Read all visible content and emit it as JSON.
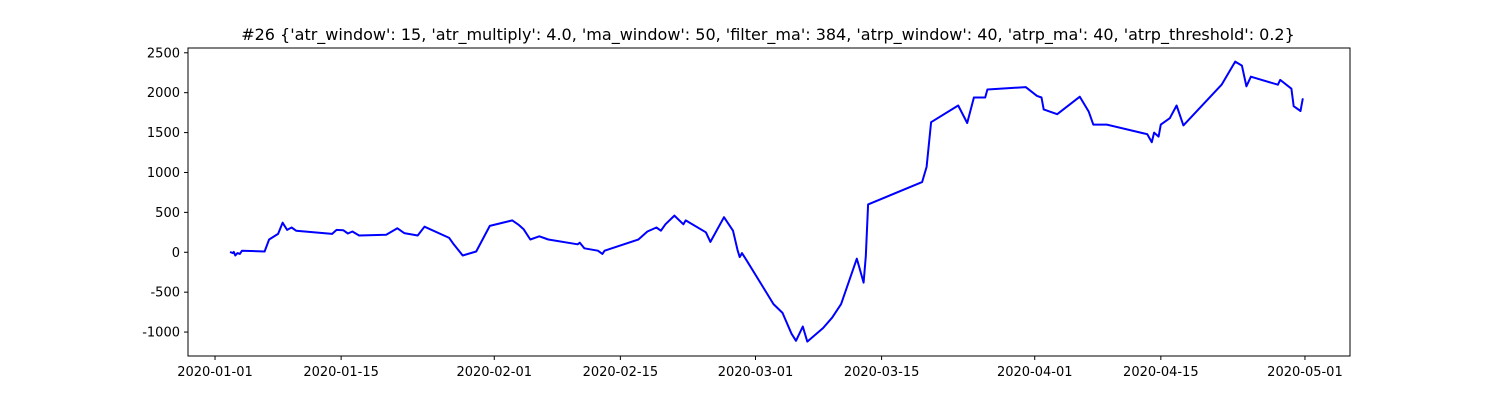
{
  "chart_data": {
    "type": "line",
    "title": "#26 {'atr_window': 15, 'atr_multiply': 4.0, 'ma_window': 50, 'filter_ma': 384, 'atrp_window': 40, 'atrp_ma': 40, 'atrp_threshold': 0.2}",
    "xlabel": "",
    "ylabel": "",
    "x_type": "date",
    "xlim": [
      "2019-12-29",
      "2020-05-06"
    ],
    "ylim": [
      -1300,
      2560
    ],
    "x_ticks": [
      "2020-01-01",
      "2020-01-15",
      "2020-02-01",
      "2020-02-15",
      "2020-03-01",
      "2020-03-15",
      "2020-04-01",
      "2020-04-15",
      "2020-05-01"
    ],
    "y_ticks": [
      -1000,
      -500,
      0,
      500,
      1000,
      1500,
      2000,
      2500
    ],
    "grid": false,
    "line_color": "#0000ff",
    "series": [
      {
        "points": [
          [
            "2020-01-02 18:00",
            0
          ],
          [
            "2020-01-03 00:00",
            -10
          ],
          [
            "2020-01-03 02:00",
            5
          ],
          [
            "2020-01-03 06:00",
            -40
          ],
          [
            "2020-01-03 12:00",
            -10
          ],
          [
            "2020-01-03 18:00",
            -20
          ],
          [
            "2020-01-04 00:00",
            20
          ],
          [
            "2020-01-06 12:00",
            10
          ],
          [
            "2020-01-07 00:00",
            160
          ],
          [
            "2020-01-08 00:00",
            230
          ],
          [
            "2020-01-08 12:00",
            370
          ],
          [
            "2020-01-09 00:00",
            280
          ],
          [
            "2020-01-09 12:00",
            310
          ],
          [
            "2020-01-10 00:00",
            270
          ],
          [
            "2020-01-14 00:00",
            230
          ],
          [
            "2020-01-14 12:00",
            280
          ],
          [
            "2020-01-15 06:00",
            275
          ],
          [
            "2020-01-15 18:00",
            235
          ],
          [
            "2020-01-16 06:00",
            260
          ],
          [
            "2020-01-17 00:00",
            210
          ],
          [
            "2020-01-20 00:00",
            220
          ],
          [
            "2020-01-21 06:00",
            300
          ],
          [
            "2020-01-22 00:00",
            240
          ],
          [
            "2020-01-23 12:00",
            210
          ],
          [
            "2020-01-24 06:00",
            320
          ],
          [
            "2020-01-27 00:00",
            180
          ],
          [
            "2020-01-27 12:00",
            100
          ],
          [
            "2020-01-28 12:00",
            -40
          ],
          [
            "2020-01-30 00:00",
            10
          ],
          [
            "2020-01-31 12:00",
            330
          ],
          [
            "2020-02-03 00:00",
            400
          ],
          [
            "2020-02-03 18:00",
            340
          ],
          [
            "2020-02-04 06:00",
            290
          ],
          [
            "2020-02-05 00:00",
            160
          ],
          [
            "2020-02-06 00:00",
            200
          ],
          [
            "2020-02-07 00:00",
            160
          ],
          [
            "2020-02-10 06:00",
            100
          ],
          [
            "2020-02-10 12:00",
            120
          ],
          [
            "2020-02-11 00:00",
            50
          ],
          [
            "2020-02-12 12:00",
            20
          ],
          [
            "2020-02-13 00:00",
            -20
          ],
          [
            "2020-02-13 06:00",
            20
          ],
          [
            "2020-02-17 00:00",
            160
          ],
          [
            "2020-02-18 00:00",
            260
          ],
          [
            "2020-02-19 00:00",
            310
          ],
          [
            "2020-02-19 12:00",
            270
          ],
          [
            "2020-02-20 00:00",
            350
          ],
          [
            "2020-02-21 00:00",
            460
          ],
          [
            "2020-02-22 00:00",
            350
          ],
          [
            "2020-02-22 06:00",
            400
          ],
          [
            "2020-02-24 12:00",
            250
          ],
          [
            "2020-02-25 00:00",
            130
          ],
          [
            "2020-02-26 12:00",
            440
          ],
          [
            "2020-02-27 12:00",
            270
          ],
          [
            "2020-02-28 00:00",
            30
          ],
          [
            "2020-02-28 06:00",
            -60
          ],
          [
            "2020-02-28 12:00",
            -10
          ],
          [
            "2020-02-29 00:00",
            -100
          ],
          [
            "2020-03-03 00:00",
            -650
          ],
          [
            "2020-03-04 00:00",
            -760
          ],
          [
            "2020-03-05 00:00",
            -1020
          ],
          [
            "2020-03-05 12:00",
            -1110
          ],
          [
            "2020-03-06 06:00",
            -930
          ],
          [
            "2020-03-06 18:00",
            -1120
          ],
          [
            "2020-03-08 12:00",
            -950
          ],
          [
            "2020-03-09 12:00",
            -820
          ],
          [
            "2020-03-10 12:00",
            -650
          ],
          [
            "2020-03-12 06:00",
            -80
          ],
          [
            "2020-03-12 12:00",
            -180
          ],
          [
            "2020-03-13 00:00",
            -380
          ],
          [
            "2020-03-13 06:00",
            -50
          ],
          [
            "2020-03-13 12:00",
            600
          ],
          [
            "2020-03-19 12:00",
            880
          ],
          [
            "2020-03-20 00:00",
            1070
          ],
          [
            "2020-03-20 12:00",
            1630
          ],
          [
            "2020-03-23 12:00",
            1840
          ],
          [
            "2020-03-24 12:00",
            1620
          ],
          [
            "2020-03-25 06:00",
            1940
          ],
          [
            "2020-03-26 12:00",
            1940
          ],
          [
            "2020-03-26 18:00",
            2040
          ],
          [
            "2020-03-31 00:00",
            2070
          ],
          [
            "2020-04-01 06:00",
            1960
          ],
          [
            "2020-04-01 18:00",
            1940
          ],
          [
            "2020-04-02 00:00",
            1790
          ],
          [
            "2020-04-03 12:00",
            1730
          ],
          [
            "2020-04-06 00:00",
            1950
          ],
          [
            "2020-04-07 00:00",
            1760
          ],
          [
            "2020-04-07 12:00",
            1600
          ],
          [
            "2020-04-09 00:00",
            1600
          ],
          [
            "2020-04-13 12:00",
            1480
          ],
          [
            "2020-04-14 00:00",
            1380
          ],
          [
            "2020-04-14 06:00",
            1500
          ],
          [
            "2020-04-14 18:00",
            1450
          ],
          [
            "2020-04-15 00:00",
            1600
          ],
          [
            "2020-04-16 00:00",
            1680
          ],
          [
            "2020-04-16 18:00",
            1840
          ],
          [
            "2020-04-17 12:00",
            1590
          ],
          [
            "2020-04-21 18:00",
            2100
          ],
          [
            "2020-04-23 06:00",
            2390
          ],
          [
            "2020-04-24 00:00",
            2340
          ],
          [
            "2020-04-24 12:00",
            2080
          ],
          [
            "2020-04-25 00:00",
            2200
          ],
          [
            "2020-04-28 00:00",
            2100
          ],
          [
            "2020-04-28 06:00",
            2160
          ],
          [
            "2020-04-29 12:00",
            2050
          ],
          [
            "2020-04-29 18:00",
            1830
          ],
          [
            "2020-04-30 12:00",
            1770
          ],
          [
            "2020-04-30 18:00",
            1920
          ]
        ]
      }
    ]
  }
}
